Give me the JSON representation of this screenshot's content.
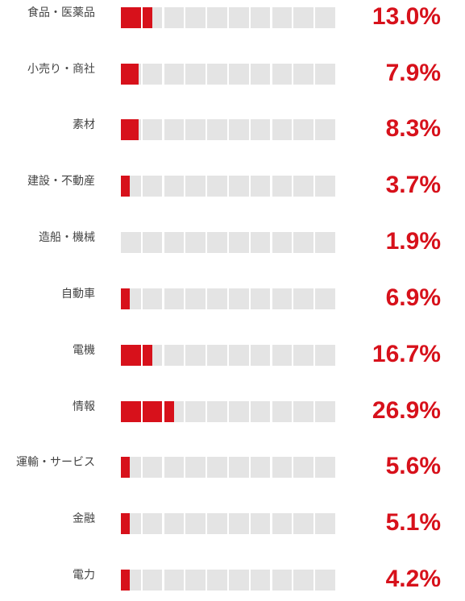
{
  "chart_data": {
    "type": "bar",
    "title": "",
    "xlabel": "",
    "ylabel": "",
    "cells_per_bar": 10,
    "categories": [
      "食品・医薬品",
      "小売り・商社",
      "素材",
      "建設・不動産",
      "造船・機械",
      "自動車",
      "電機",
      "情報",
      "運輸・サービス",
      "金融",
      "電力"
    ],
    "values": [
      13.0,
      7.9,
      8.3,
      3.7,
      1.9,
      6.9,
      16.7,
      26.9,
      5.6,
      5.1,
      4.2
    ],
    "value_labels": [
      "13.0%",
      "7.9%",
      "8.3%",
      "3.7%",
      "1.9%",
      "6.9%",
      "16.7%",
      "26.9%",
      "5.6%",
      "5.1%",
      "4.2%"
    ],
    "filled_cells": [
      1.5,
      0.9,
      0.9,
      0.45,
      0,
      0.45,
      1.5,
      2.5,
      0.45,
      0.45,
      0.45
    ],
    "colors": {
      "fill": "#d7111b",
      "empty": "#e4e4e4",
      "value_text": "#d7111b",
      "label_text": "#444444"
    }
  }
}
